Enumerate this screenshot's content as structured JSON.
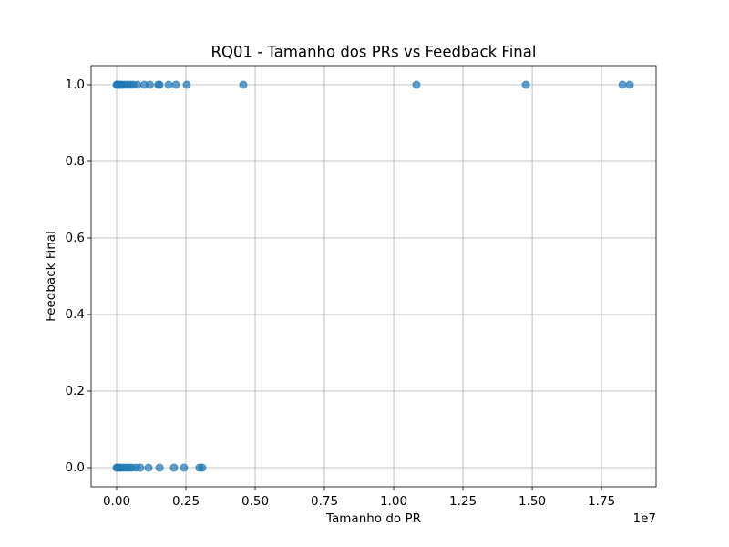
{
  "chart_data": {
    "type": "scatter",
    "title": "RQ01 - Tamanho dos PRs vs Feedback Final",
    "x_label": "Tamanho do PR",
    "y_label": "Feedback Final",
    "x_offset_label": "1e7",
    "color": "#1f77b4",
    "grid": true,
    "xlim": [
      -921000,
      19470000
    ],
    "ylim": [
      -0.05,
      1.05
    ],
    "xticks": [
      {
        "value": 0,
        "label": "0.00"
      },
      {
        "value": 2500000,
        "label": "0.25"
      },
      {
        "value": 5000000,
        "label": "0.50"
      },
      {
        "value": 7500000,
        "label": "0.75"
      },
      {
        "value": 10000000,
        "label": "1.00"
      },
      {
        "value": 12500000,
        "label": "1.25"
      },
      {
        "value": 15000000,
        "label": "1.50"
      },
      {
        "value": 17500000,
        "label": "1.75"
      }
    ],
    "yticks": [
      {
        "value": 0,
        "label": "0.0"
      },
      0.2,
      0.4,
      0.6,
      0.8,
      {
        "value": 1,
        "label": "1.0"
      }
    ],
    "x": [
      0,
      20000,
      50000,
      100000,
      150000,
      200000,
      300000,
      400000,
      500000,
      600000,
      750000,
      1000000,
      1200000,
      1500000,
      1550000,
      1880000,
      2140000,
      2530000,
      4570000,
      10820000,
      14770000,
      18260000,
      18520000,
      0,
      30000,
      80000,
      150000,
      250000,
      350000,
      450000,
      550000,
      700000,
      850000,
      1150000,
      1550000,
      2070000,
      2430000,
      2990000,
      3090000
    ],
    "values": [
      1,
      1,
      1,
      1,
      1,
      1,
      1,
      1,
      1,
      1,
      1,
      1,
      1,
      1,
      1,
      1,
      1,
      1,
      1,
      1,
      1,
      1,
      1,
      0,
      0,
      0,
      0,
      0,
      0,
      0,
      0,
      0,
      0,
      0,
      0,
      0,
      0,
      0,
      0
    ]
  }
}
